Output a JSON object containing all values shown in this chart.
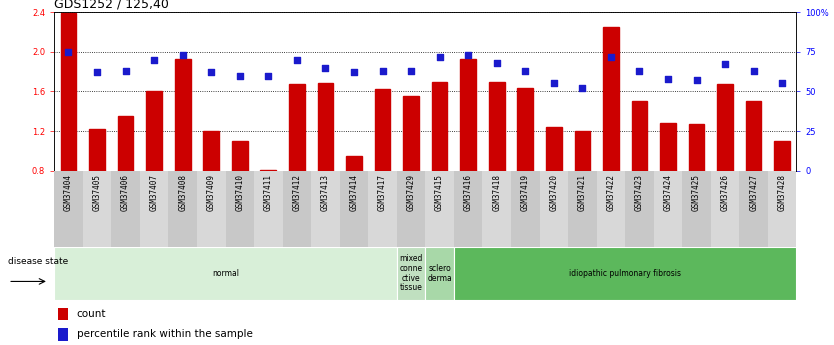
{
  "title": "GDS1252 / 125,40",
  "samples": [
    "GSM37404",
    "GSM37405",
    "GSM37406",
    "GSM37407",
    "GSM37408",
    "GSM37409",
    "GSM37410",
    "GSM37411",
    "GSM37412",
    "GSM37413",
    "GSM37414",
    "GSM37417",
    "GSM37429",
    "GSM37415",
    "GSM37416",
    "GSM37418",
    "GSM37419",
    "GSM37420",
    "GSM37421",
    "GSM37422",
    "GSM37423",
    "GSM37424",
    "GSM37425",
    "GSM37426",
    "GSM37427",
    "GSM37428"
  ],
  "bar_values": [
    2.39,
    1.22,
    1.35,
    1.6,
    1.93,
    1.2,
    1.1,
    0.81,
    1.67,
    1.68,
    0.95,
    1.62,
    1.55,
    1.69,
    1.93,
    1.69,
    1.63,
    1.24,
    1.2,
    2.25,
    1.5,
    1.28,
    1.27,
    1.67,
    1.5,
    1.1
  ],
  "blue_values": [
    75,
    62,
    63,
    70,
    73,
    62,
    60,
    60,
    70,
    65,
    62,
    63,
    63,
    72,
    73,
    68,
    63,
    55,
    52,
    72,
    63,
    58,
    57,
    67,
    63,
    55
  ],
  "disease_groups": [
    {
      "label": "normal",
      "start": 0,
      "end": 12,
      "color": "#d8efd8"
    },
    {
      "label": "mixed\nconne\nctive\ntissue",
      "start": 12,
      "end": 13,
      "color": "#c0e0c0"
    },
    {
      "label": "sclero\nderma",
      "start": 13,
      "end": 14,
      "color": "#a8d8a8"
    },
    {
      "label": "idiopathic pulmonary fibrosis",
      "start": 14,
      "end": 26,
      "color": "#5cb85c"
    }
  ],
  "ylim_left": [
    0.8,
    2.4
  ],
  "ylim_right": [
    0,
    100
  ],
  "yticks_left": [
    0.8,
    1.2,
    1.6,
    2.0,
    2.4
  ],
  "yticks_right": [
    0,
    25,
    50,
    75,
    100
  ],
  "ytick_labels_right": [
    "0",
    "25",
    "50",
    "75",
    "100%"
  ],
  "bar_color": "#cc0000",
  "blue_color": "#1a1acc",
  "bar_width": 0.55,
  "legend_count_label": "count",
  "legend_pct_label": "percentile rank within the sample",
  "disease_state_label": "disease state",
  "background_color": "#ffffff",
  "title_fontsize": 9,
  "tick_fontsize": 6,
  "label_fontsize": 7.5
}
